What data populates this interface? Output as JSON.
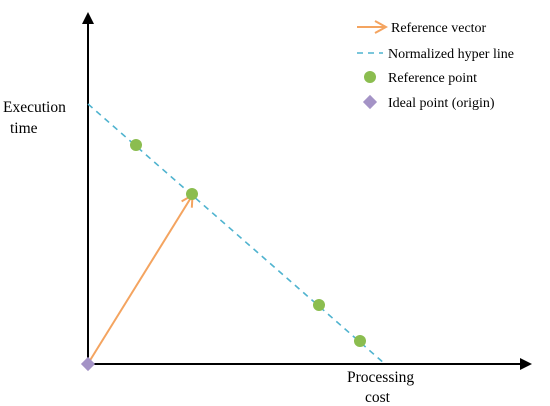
{
  "axes": {
    "y_label_line1": "Execution",
    "y_label_line2": "time",
    "x_label_line1": "Processing",
    "x_label_line2": "cost"
  },
  "legend": {
    "reference_vector": "Reference vector",
    "hyper_line": "Normalized hyper line",
    "reference_point": "Reference point",
    "ideal_point": "Ideal point (origin)"
  },
  "colors": {
    "axis": "#000000",
    "vector": "#f4a460",
    "hyper_line": "#4fb3cf",
    "reference_point": "#8bbd4f",
    "ideal_point": "#a493c6"
  },
  "icons": {
    "reference_vector": "arrow-icon",
    "hyper_line": "dashed-line-icon",
    "reference_point": "green-circle-icon",
    "ideal_point": "purple-diamond-icon"
  }
}
